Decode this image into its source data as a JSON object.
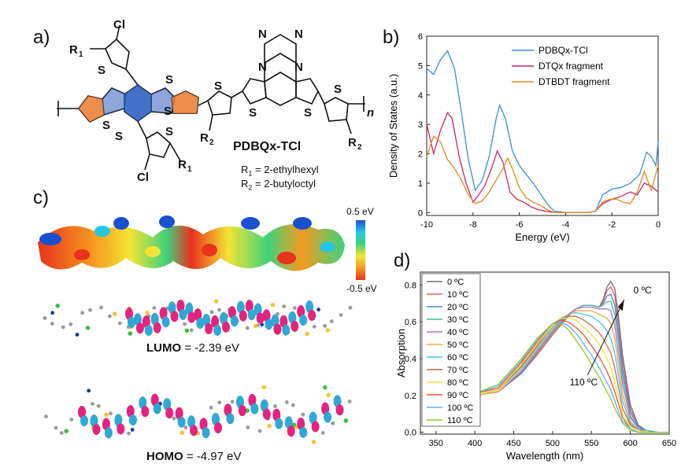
{
  "panels": {
    "a": "a)",
    "b": "b)",
    "c": "c)",
    "d": "d)"
  },
  "structure": {
    "atoms": {
      "cl": "Cl",
      "s": "S",
      "n": "N",
      "r1": "R",
      "r2": "R",
      "r1_sub": "1",
      "r2_sub": "2",
      "n_sub": "n"
    },
    "name": "PDBQx-TCl",
    "r1_label": "R",
    "r1_label_sub": "1",
    "r1_def": " = 2-ethylhexyl",
    "r2_label": "R",
    "r2_label_sub": "2",
    "r2_def": " = 2-butyloctyl"
  },
  "esp": {
    "scale_max": "0.5 eV",
    "scale_min": "-0.5 eV",
    "colors": {
      "red": "#e8321e",
      "orange": "#f59a1f",
      "yellow": "#f4e534",
      "green": "#3fd27a",
      "cyan": "#25c6e3",
      "blue": "#1a4fd0"
    }
  },
  "orbitals": {
    "lumo_name": "LUMO",
    "lumo_value": " = -2.39 eV",
    "homo_name": "HOMO",
    "homo_value": " = -4.97 eV",
    "colors": {
      "lobe_a": "#e4237f",
      "lobe_b": "#2fa8d6",
      "carbon": "#9a9a9a",
      "sulfur": "#f5c33a",
      "chlorine": "#39c245",
      "nitrogen": "#2233aa"
    }
  },
  "chart_data": [
    {
      "type": "line",
      "panel": "b",
      "xlabel": "Energy (eV)",
      "ylabel": "Density of States (a.u.)",
      "xlim": [
        -10,
        0
      ],
      "ylim": [
        -0.1,
        6
      ],
      "xticks": [
        -10,
        -8,
        -6,
        -4,
        -2,
        0
      ],
      "yticks": [
        0,
        1,
        2,
        3,
        4,
        5,
        6
      ],
      "legend": "top-right",
      "series": [
        {
          "name": "PDBQx-TCl",
          "color": "#3a8fd6",
          "x": [
            -10,
            -9.7,
            -9.4,
            -9.1,
            -8.8,
            -8.5,
            -8.2,
            -7.9,
            -7.6,
            -7.3,
            -7.0,
            -6.85,
            -6.6,
            -6.3,
            -6.0,
            -5.7,
            -5.4,
            -5.1,
            -4.8,
            -4.5,
            -4.0,
            -3.5,
            -3.0,
            -2.7,
            -2.4,
            -2.0,
            -1.6,
            -1.2,
            -0.8,
            -0.5,
            -0.3,
            -0.1,
            0
          ],
          "y": [
            4.9,
            4.7,
            5.2,
            5.5,
            4.9,
            3.4,
            1.8,
            0.75,
            1.1,
            1.9,
            3.2,
            3.65,
            3.2,
            2.1,
            1.6,
            1.3,
            1.0,
            0.65,
            0.3,
            0.05,
            0.0,
            0.0,
            0.0,
            0.05,
            0.6,
            0.8,
            0.85,
            1.0,
            1.3,
            2.05,
            1.9,
            1.6,
            2.4
          ]
        },
        {
          "name": "DTQx fragment",
          "color": "#c8236e",
          "x": [
            -10,
            -9.7,
            -9.4,
            -9.1,
            -8.9,
            -8.6,
            -8.3,
            -8.0,
            -7.8,
            -7.5,
            -7.2,
            -6.95,
            -6.7,
            -6.4,
            -6.1,
            -5.8,
            -5.5,
            -5.2,
            -4.9,
            -4.5,
            -4.0,
            -3.5,
            -3.0,
            -2.7,
            -2.4,
            -2.0,
            -1.6,
            -1.2,
            -0.9,
            -0.6,
            -0.3,
            0
          ],
          "y": [
            3.0,
            2.0,
            2.8,
            3.4,
            3.2,
            1.9,
            1.0,
            0.35,
            0.55,
            0.9,
            1.5,
            2.1,
            1.7,
            0.7,
            0.45,
            0.35,
            0.2,
            0.1,
            0.05,
            0.0,
            0.0,
            0.0,
            0.0,
            0.05,
            0.3,
            0.45,
            0.55,
            0.7,
            0.6,
            1.0,
            0.9,
            0.7
          ]
        },
        {
          "name": "DTBDT fragment",
          "color": "#e08a1e",
          "x": [
            -10,
            -9.7,
            -9.4,
            -9.1,
            -8.8,
            -8.5,
            -8.2,
            -7.9,
            -7.6,
            -7.3,
            -7.0,
            -6.7,
            -6.5,
            -6.3,
            -6.0,
            -5.7,
            -5.4,
            -5.1,
            -4.8,
            -4.5,
            -4.0,
            -3.5,
            -3.0,
            -2.7,
            -2.4,
            -2.1,
            -1.8,
            -1.5,
            -1.2,
            -0.9,
            -0.6,
            -0.3,
            0
          ],
          "y": [
            1.9,
            2.6,
            2.4,
            1.8,
            1.5,
            1.1,
            0.6,
            0.3,
            0.4,
            0.7,
            1.1,
            1.5,
            1.85,
            1.5,
            0.85,
            0.5,
            0.35,
            0.25,
            0.1,
            0.0,
            0.0,
            0.0,
            0.0,
            0.05,
            0.35,
            0.45,
            0.45,
            0.35,
            0.3,
            0.7,
            1.4,
            0.75,
            1.6
          ]
        }
      ]
    },
    {
      "type": "line",
      "panel": "d",
      "xlabel": "Wavelength (nm)",
      "ylabel": "Absorption",
      "xlim": [
        330,
        650
      ],
      "ylim": [
        -0.01,
        0.87
      ],
      "xticks": [
        350,
        400,
        450,
        500,
        550,
        600,
        650
      ],
      "yticks": [
        0.0,
        0.2,
        0.4,
        0.6,
        0.8
      ],
      "legend": "top-left",
      "annotations": {
        "top": "0 ºC",
        "bottom": "110 ºC"
      },
      "x": [
        330,
        360,
        400,
        430,
        460,
        480,
        500,
        510,
        520,
        530,
        540,
        550,
        560,
        565,
        570,
        575,
        580,
        585,
        590,
        600,
        610,
        620,
        635,
        650
      ],
      "series": [
        {
          "name": "0 ºC",
          "color": "#707070",
          "values": [
            0.2,
            0.2,
            0.2,
            0.22,
            0.32,
            0.42,
            0.53,
            0.58,
            0.63,
            0.67,
            0.69,
            0.69,
            0.68,
            0.72,
            0.79,
            0.82,
            0.78,
            0.62,
            0.42,
            0.15,
            0.04,
            0.01,
            0.0,
            0.0
          ]
        },
        {
          "name": "10 ºC",
          "color": "#e06060",
          "values": [
            0.2,
            0.2,
            0.2,
            0.22,
            0.32,
            0.42,
            0.53,
            0.58,
            0.63,
            0.67,
            0.69,
            0.69,
            0.68,
            0.71,
            0.77,
            0.79,
            0.74,
            0.58,
            0.38,
            0.13,
            0.03,
            0.01,
            0.0,
            0.0
          ]
        },
        {
          "name": "20 ºC",
          "color": "#4a88d8",
          "values": [
            0.2,
            0.2,
            0.2,
            0.22,
            0.32,
            0.43,
            0.54,
            0.59,
            0.64,
            0.67,
            0.69,
            0.69,
            0.68,
            0.7,
            0.74,
            0.75,
            0.69,
            0.53,
            0.34,
            0.11,
            0.03,
            0.01,
            0.0,
            0.0
          ]
        },
        {
          "name": "30 ºC",
          "color": "#4bb898",
          "values": [
            0.2,
            0.2,
            0.2,
            0.22,
            0.33,
            0.43,
            0.54,
            0.59,
            0.64,
            0.67,
            0.69,
            0.69,
            0.68,
            0.69,
            0.71,
            0.71,
            0.64,
            0.48,
            0.3,
            0.09,
            0.02,
            0.01,
            0.0,
            0.0
          ]
        },
        {
          "name": "40 ºC",
          "color": "#b070d0",
          "values": [
            0.2,
            0.2,
            0.2,
            0.22,
            0.33,
            0.44,
            0.55,
            0.6,
            0.64,
            0.67,
            0.68,
            0.68,
            0.67,
            0.67,
            0.67,
            0.66,
            0.58,
            0.42,
            0.26,
            0.08,
            0.02,
            0.0,
            0.0,
            0.0
          ]
        },
        {
          "name": "50 ºC",
          "color": "#f0a840",
          "values": [
            0.2,
            0.2,
            0.2,
            0.22,
            0.34,
            0.45,
            0.56,
            0.61,
            0.64,
            0.66,
            0.66,
            0.66,
            0.64,
            0.63,
            0.62,
            0.59,
            0.51,
            0.36,
            0.21,
            0.06,
            0.01,
            0.0,
            0.0,
            0.0
          ]
        },
        {
          "name": "60 ºC",
          "color": "#40c8e8",
          "values": [
            0.2,
            0.2,
            0.2,
            0.23,
            0.35,
            0.46,
            0.57,
            0.61,
            0.64,
            0.65,
            0.64,
            0.63,
            0.6,
            0.58,
            0.55,
            0.51,
            0.43,
            0.3,
            0.17,
            0.05,
            0.01,
            0.0,
            0.0,
            0.0
          ]
        },
        {
          "name": "70 ºC",
          "color": "#c07040",
          "values": [
            0.2,
            0.2,
            0.2,
            0.23,
            0.36,
            0.47,
            0.58,
            0.62,
            0.63,
            0.63,
            0.61,
            0.58,
            0.54,
            0.51,
            0.47,
            0.43,
            0.35,
            0.24,
            0.13,
            0.04,
            0.01,
            0.0,
            0.0,
            0.0
          ]
        },
        {
          "name": "80 ºC",
          "color": "#f0e040",
          "values": [
            0.2,
            0.2,
            0.2,
            0.23,
            0.37,
            0.48,
            0.58,
            0.62,
            0.62,
            0.61,
            0.57,
            0.53,
            0.48,
            0.44,
            0.4,
            0.35,
            0.28,
            0.19,
            0.1,
            0.03,
            0.01,
            0.0,
            0.0,
            0.0
          ]
        },
        {
          "name": "90 ºC",
          "color": "#e85030",
          "values": [
            0.2,
            0.2,
            0.21,
            0.24,
            0.38,
            0.49,
            0.59,
            0.61,
            0.6,
            0.57,
            0.53,
            0.47,
            0.41,
            0.37,
            0.33,
            0.28,
            0.22,
            0.15,
            0.08,
            0.02,
            0.0,
            0.0,
            0.0,
            0.0
          ]
        },
        {
          "name": "100 ºC",
          "color": "#60b0f0",
          "values": [
            0.2,
            0.2,
            0.21,
            0.25,
            0.39,
            0.5,
            0.59,
            0.6,
            0.58,
            0.54,
            0.48,
            0.42,
            0.35,
            0.31,
            0.27,
            0.23,
            0.17,
            0.11,
            0.06,
            0.02,
            0.0,
            0.0,
            0.0,
            0.0
          ]
        },
        {
          "name": "110 ºC",
          "color": "#90c830",
          "values": [
            0.2,
            0.2,
            0.21,
            0.26,
            0.4,
            0.51,
            0.59,
            0.59,
            0.56,
            0.5,
            0.44,
            0.37,
            0.3,
            0.26,
            0.22,
            0.18,
            0.13,
            0.09,
            0.05,
            0.01,
            0.0,
            0.0,
            0.0,
            0.0
          ]
        }
      ]
    }
  ]
}
